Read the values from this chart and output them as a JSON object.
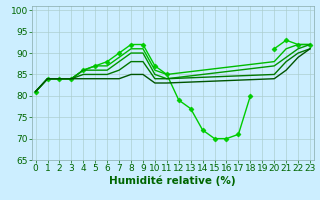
{
  "lines": [
    {
      "x": [
        0,
        1,
        2,
        3,
        4,
        5,
        6,
        7,
        8,
        9,
        10,
        11,
        12,
        13,
        14,
        15,
        16,
        17,
        18,
        19,
        20,
        21,
        22,
        23
      ],
      "y": [
        81,
        84,
        84,
        84,
        86,
        87,
        88,
        90,
        92,
        92,
        87,
        85,
        79,
        77,
        72,
        70,
        70,
        71,
        80,
        null,
        91,
        93,
        92,
        92
      ],
      "color": "#00cc00",
      "marker": "D",
      "markersize": 2.5,
      "linewidth": 1.0
    },
    {
      "x": [
        0,
        1,
        2,
        3,
        4,
        5,
        6,
        7,
        8,
        9,
        10,
        11,
        20,
        21,
        22,
        23
      ],
      "y": [
        81,
        84,
        84,
        84,
        86,
        87,
        87,
        89,
        91,
        91,
        86,
        85,
        88,
        91,
        92,
        92
      ],
      "color": "#00bb00",
      "marker": null,
      "markersize": 0,
      "linewidth": 1.0
    },
    {
      "x": [
        0,
        1,
        2,
        3,
        4,
        5,
        6,
        7,
        8,
        9,
        10,
        11,
        20,
        21,
        22,
        23
      ],
      "y": [
        81,
        84,
        84,
        84,
        86,
        86,
        86,
        88,
        90,
        90,
        85,
        84,
        87,
        89,
        91,
        92
      ],
      "color": "#009900",
      "marker": null,
      "markersize": 0,
      "linewidth": 1.0
    },
    {
      "x": [
        0,
        1,
        2,
        3,
        4,
        5,
        6,
        7,
        8,
        9,
        10,
        11,
        20,
        21,
        22,
        23
      ],
      "y": [
        81,
        84,
        84,
        84,
        85,
        85,
        85,
        86,
        88,
        88,
        84,
        84,
        85,
        88,
        90,
        91
      ],
      "color": "#007700",
      "marker": null,
      "markersize": 0,
      "linewidth": 1.0
    },
    {
      "x": [
        0,
        1,
        2,
        3,
        4,
        5,
        6,
        7,
        8,
        9,
        10,
        11,
        20,
        21,
        22,
        23
      ],
      "y": [
        81,
        84,
        84,
        84,
        84,
        84,
        84,
        84,
        85,
        85,
        83,
        83,
        84,
        86,
        89,
        91
      ],
      "color": "#005500",
      "marker": null,
      "markersize": 0,
      "linewidth": 1.0
    }
  ],
  "xlabel": "Humidité relative (%)",
  "xlim": [
    -0.3,
    23.3
  ],
  "ylim": [
    65,
    101
  ],
  "yticks": [
    65,
    70,
    75,
    80,
    85,
    90,
    95,
    100
  ],
  "xticks": [
    0,
    1,
    2,
    3,
    4,
    5,
    6,
    7,
    8,
    9,
    10,
    11,
    12,
    13,
    14,
    15,
    16,
    17,
    18,
    19,
    20,
    21,
    22,
    23
  ],
  "background_color": "#cceeff",
  "grid_color": "#aacccc",
  "tick_color": "#006600",
  "xlabel_color": "#006600",
  "xlabel_fontsize": 7.5,
  "tick_fontsize": 6.5
}
